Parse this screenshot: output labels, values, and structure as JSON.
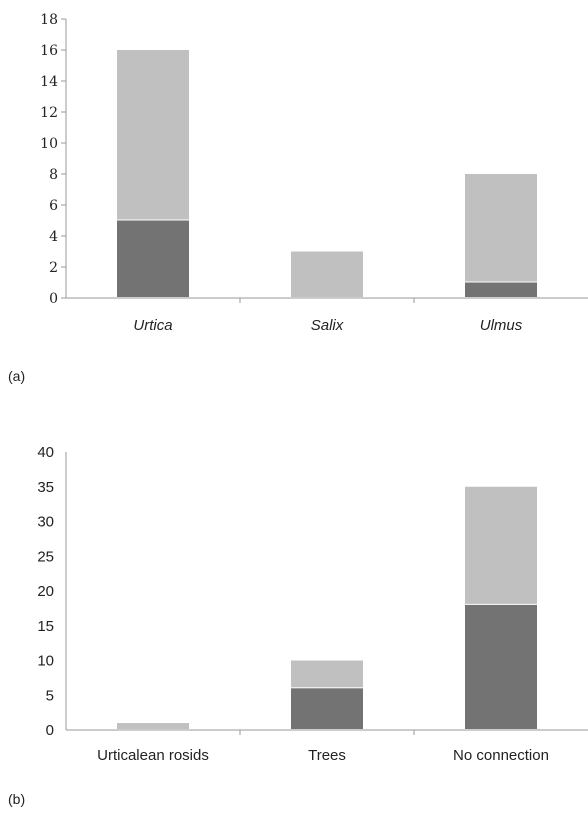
{
  "colors": {
    "dark": "#737373",
    "light": "#c0c0c0",
    "axis": "#999999"
  },
  "chart_data": [
    {
      "type": "bar",
      "stacked": true,
      "panel_label": "(a)",
      "categories": [
        "Urtica",
        "Salix",
        "Ulmus"
      ],
      "category_style": "italic",
      "series": [
        {
          "color": "dark",
          "values": [
            5,
            0,
            1
          ]
        },
        {
          "color": "light",
          "values": [
            11,
            3,
            7
          ]
        }
      ],
      "ylim": [
        0,
        18
      ],
      "yticks": [
        0,
        2,
        4,
        6,
        8,
        10,
        12,
        14,
        16,
        18
      ],
      "grid": false,
      "legend": "none"
    },
    {
      "type": "bar",
      "stacked": true,
      "panel_label": "(b)",
      "categories": [
        "Urticalean rosids",
        "Trees",
        "No connection"
      ],
      "category_style": "normal",
      "series": [
        {
          "color": "dark",
          "values": [
            0,
            6,
            18
          ]
        },
        {
          "color": "light",
          "values": [
            1,
            4,
            17
          ]
        }
      ],
      "ylim": [
        0,
        40
      ],
      "yticks": [
        0,
        5,
        10,
        15,
        20,
        25,
        30,
        35,
        40
      ],
      "grid": false,
      "legend": "none"
    }
  ]
}
